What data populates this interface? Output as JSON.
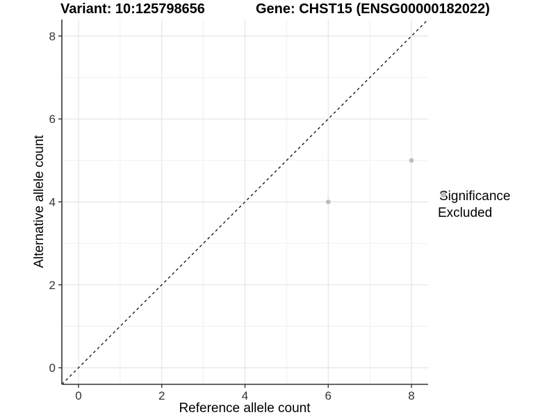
{
  "chart_data": {
    "type": "scatter",
    "title_left": "Variant: 10:125798656",
    "title_right": "Gene: CHST15 (ENSG00000182022)",
    "xlabel": "Reference allele count",
    "ylabel": "Alternative allele count",
    "xlim": [
      -0.4,
      8.4
    ],
    "ylim": [
      -0.4,
      8.4
    ],
    "ticks": [
      0,
      2,
      4,
      6,
      8
    ],
    "tick_labels": [
      "0",
      "2",
      "4",
      "6",
      "8"
    ],
    "minor_ticks": [
      1,
      3,
      5,
      7
    ],
    "grid": "major+minor",
    "points": [
      {
        "x": 6,
        "y": 4,
        "series": "Excluded"
      },
      {
        "x": 8,
        "y": 5,
        "series": "Excluded"
      }
    ],
    "abline": {
      "slope": 1,
      "intercept": 0,
      "style": "dashed"
    },
    "legend": {
      "title": "Significance",
      "position": "right",
      "items": [
        {
          "label": "Excluded",
          "color": "#bdbdbd"
        }
      ]
    },
    "colors": {
      "point": "#bdbdbd",
      "grid_major": "#e4e4e4",
      "grid_minor": "#f0f0f0",
      "axis": "#333333",
      "abline": "#1a1a1a",
      "tick_text": "#333333"
    }
  }
}
